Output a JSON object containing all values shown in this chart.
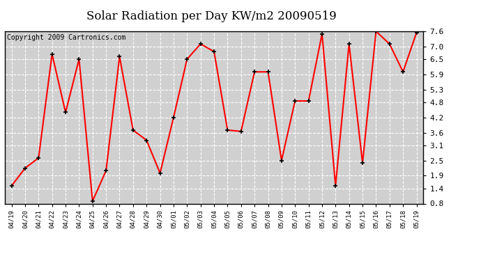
{
  "title": "Solar Radiation per Day KW/m2 20090519",
  "copyright": "Copyright 2009 Cartronics.com",
  "dates": [
    "04/19",
    "04/20",
    "04/21",
    "04/22",
    "04/23",
    "04/24",
    "04/25",
    "04/26",
    "04/27",
    "04/28",
    "04/29",
    "04/30",
    "05/01",
    "05/02",
    "05/03",
    "05/04",
    "05/05",
    "05/06",
    "05/07",
    "05/08",
    "05/09",
    "05/10",
    "05/11",
    "05/12",
    "05/13",
    "05/14",
    "05/15",
    "05/16",
    "05/17",
    "05/18",
    "05/19"
  ],
  "values": [
    1.5,
    2.2,
    2.6,
    6.7,
    4.4,
    6.5,
    0.9,
    2.1,
    6.6,
    3.7,
    3.3,
    2.0,
    4.2,
    6.5,
    7.1,
    6.8,
    3.7,
    3.65,
    6.0,
    6.0,
    2.5,
    4.85,
    4.85,
    7.5,
    1.5,
    7.1,
    2.4,
    7.6,
    7.1,
    6.0,
    7.55
  ],
  "line_color": "#ff0000",
  "marker_color": "#000000",
  "fig_bg_color": "#ffffff",
  "plot_bg_color": "#d0d0d0",
  "grid_color": "#ffffff",
  "ylim": [
    0.8,
    7.6
  ],
  "yticks": [
    0.8,
    1.4,
    1.9,
    2.5,
    3.1,
    3.6,
    4.2,
    4.8,
    5.3,
    5.9,
    6.5,
    7.0,
    7.6
  ],
  "title_fontsize": 12,
  "copyright_fontsize": 7
}
